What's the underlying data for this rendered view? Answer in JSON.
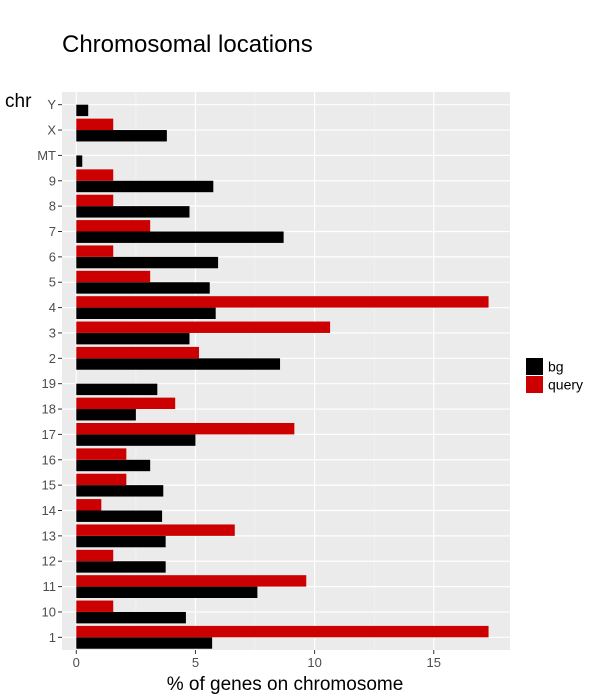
{
  "chart_data": {
    "type": "bar",
    "orientation": "horizontal",
    "title": "Chromosomal locations",
    "xlabel": "% of genes on chromosome",
    "ylabel": "chr",
    "xlim": [
      -0.6,
      18.2
    ],
    "xticks": [
      0,
      5,
      10,
      15
    ],
    "categories": [
      "1",
      "10",
      "11",
      "12",
      "13",
      "14",
      "15",
      "16",
      "17",
      "18",
      "19",
      "2",
      "3",
      "4",
      "5",
      "6",
      "7",
      "8",
      "9",
      "MT",
      "X",
      "Y"
    ],
    "series": [
      {
        "name": "bg",
        "color": "#000000",
        "values": [
          5.7,
          4.6,
          7.6,
          3.75,
          3.75,
          3.6,
          3.65,
          3.1,
          5.0,
          2.5,
          3.4,
          8.55,
          4.75,
          5.85,
          5.6,
          5.95,
          8.7,
          4.75,
          5.75,
          0.25,
          3.8,
          0.5
        ]
      },
      {
        "name": "query",
        "color": "#cc0000",
        "values": [
          17.3,
          1.55,
          9.65,
          1.55,
          6.65,
          1.05,
          2.1,
          2.1,
          9.15,
          4.15,
          0,
          5.15,
          10.65,
          17.3,
          3.1,
          1.55,
          3.1,
          1.55,
          1.55,
          0,
          1.55,
          0
        ]
      }
    ],
    "grid": true,
    "legend_position": "right"
  }
}
